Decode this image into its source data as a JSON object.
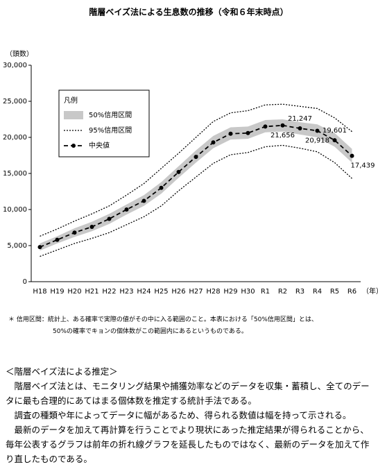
{
  "chart_data": {
    "type": "line",
    "title": "階層ベイズ法による生息数の推移（令和６年末時点）",
    "y_label": "（頭数）",
    "x_label": "（年）",
    "categories": [
      "H18",
      "H19",
      "H20",
      "H21",
      "H22",
      "H23",
      "H24",
      "H25",
      "H26",
      "H27",
      "H28",
      "H29",
      "H30",
      "R1",
      "R2",
      "R3",
      "R4",
      "R5",
      "R6"
    ],
    "ylim": [
      0,
      30000
    ],
    "yticks": [
      0,
      {
        "value": 5000,
        "label": "5,000"
      },
      {
        "value": 10000,
        "label": "10,000"
      },
      {
        "value": 15000,
        "label": "15,000"
      },
      {
        "value": 20000,
        "label": "20,000"
      },
      {
        "value": 25000,
        "label": "25,000"
      },
      {
        "value": 30000,
        "label": "30,000"
      }
    ],
    "grid": false,
    "legend_title": "凡例",
    "series": [
      {
        "name": "50%信用区間",
        "color": "#c8c8c8",
        "kind": "band",
        "lower": [
          4300,
          5300,
          6200,
          7000,
          8000,
          9300,
          10500,
          12200,
          14400,
          16500,
          18500,
          19700,
          19800,
          20700,
          20800,
          20400,
          20000,
          18700,
          16500
        ],
        "upper": [
          5300,
          6300,
          7400,
          8300,
          9400,
          10700,
          12000,
          13800,
          16000,
          18200,
          20200,
          21400,
          21500,
          22400,
          22500,
          22100,
          21800,
          20600,
          18400
        ]
      },
      {
        "name": "95%信用区間",
        "color": "#000000",
        "kind": "dotted",
        "lower": [
          3500,
          4400,
          5300,
          6000,
          6800,
          7900,
          9000,
          10500,
          12600,
          14500,
          16400,
          17600,
          17900,
          18700,
          18900,
          18500,
          18000,
          16500,
          14300
        ],
        "upper": [
          6300,
          7300,
          8400,
          9400,
          10500,
          12000,
          13600,
          15700,
          17800,
          20000,
          22200,
          23400,
          23700,
          24500,
          24600,
          24300,
          24000,
          22700,
          20800
        ]
      },
      {
        "name": "中央値",
        "color": "#000000",
        "kind": "median",
        "values": [
          4800,
          5800,
          6800,
          7600,
          8700,
          10000,
          11200,
          13000,
          15200,
          17300,
          19300,
          20500,
          20600,
          21500,
          21656,
          21247,
          20918,
          19601,
          17439
        ],
        "value_labels": [
          null,
          null,
          null,
          null,
          null,
          null,
          null,
          null,
          null,
          null,
          null,
          null,
          null,
          null,
          "21,656",
          "21,247",
          "20,918",
          "19,601",
          "17,439"
        ]
      }
    ]
  },
  "footnote": [
    "＊ 信用区間：統計上、ある確率で実際の値がその中に入る範囲のこと。本表における「50%信用区間」とは、",
    "50%の確率でキョンの個体数がこの範囲内にあるというものである。"
  ],
  "section": {
    "heading": "＜階層ベイズ法による推定＞",
    "paragraphs": [
      "　階層ベイズ法とは、モニタリング結果や捕獲効率などのデータを収集・蓄積し、全てのデータに最も合理的にあてはまる個体数を推定する統計手法である。",
      "　調査の種類や年によってデータに幅があるため、得られる数値は幅を持って示される。",
      "　最新のデータを加えて再計算を行うことでより現状にあった推定結果が得られることから、毎年公表するグラフは前年の折れ線グラフを延長したものではなく、最新のデータを加えて作り直したものである。"
    ]
  }
}
